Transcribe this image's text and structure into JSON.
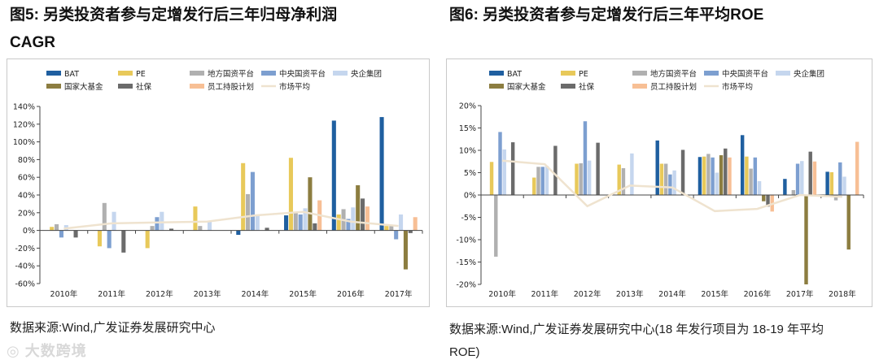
{
  "left": {
    "title_line1": "图5:  另类投资者参与定增发行后三年归母净利润",
    "title_line2": "CAGR",
    "source": "数据来源:Wind,广发证券发展研究中心"
  },
  "right": {
    "title": "图6:  另类投资者参与定增发行后三年平均ROE",
    "source": "数据来源:Wind,广发证券发展研究中心(18 年发行项目为 18-19 年平均 ROE)"
  },
  "watermark": "大数跨境",
  "colors": {
    "BAT": "#1f5fa0",
    "PE": "#e8c95a",
    "地方国资平台": "#b0b0b0",
    "中央国资平台": "#7d9fd0",
    "央企集团": "#c5d6ee",
    "国家大基金": "#8c7d40",
    "社保": "#6b6b6b",
    "员工持股计划": "#f7bf95",
    "市场平均": "#efe3cf"
  },
  "chart_data": [
    {
      "type": "bar",
      "title": "另类投资者参与定增发行后三年归母净利润CAGR",
      "categories": [
        "2010年",
        "2011年",
        "2012年",
        "2013年",
        "2014年",
        "2015年",
        "2016年",
        "2017年"
      ],
      "ylim": [
        -60,
        140
      ],
      "yticks": [
        -60,
        -40,
        -20,
        0,
        20,
        40,
        60,
        80,
        100,
        120,
        140
      ],
      "ytick_labels": [
        "-60%",
        "-40%",
        "-20%",
        "0%",
        "20%",
        "40%",
        "60%",
        "80%",
        "100%",
        "120%",
        "140%"
      ],
      "legend_rows": [
        [
          "BAT",
          "PE",
          "地方国资平台",
          "中央国资平台",
          "央企集团"
        ],
        [
          "国家大基金",
          "社保",
          "员工持股计划",
          "市场平均"
        ]
      ],
      "series": [
        {
          "name": "BAT",
          "values": [
            null,
            null,
            null,
            null,
            -5,
            17,
            124,
            128
          ]
        },
        {
          "name": "PE",
          "values": [
            4,
            -18,
            -20,
            27,
            76,
            82,
            18,
            5
          ]
        },
        {
          "name": "地方国资平台",
          "values": [
            7,
            31,
            5,
            5,
            41,
            20,
            24,
            5
          ]
        },
        {
          "name": "中央国资平台",
          "values": [
            -8,
            -20,
            15,
            null,
            66,
            18,
            13,
            -10
          ]
        },
        {
          "name": "央企集团",
          "values": [
            6,
            21,
            21,
            11,
            17,
            25,
            26,
            18
          ]
        },
        {
          "name": "国家大基金",
          "values": [
            null,
            null,
            null,
            null,
            null,
            60,
            51,
            -44
          ]
        },
        {
          "name": "社保",
          "values": [
            -8,
            -25,
            2,
            null,
            3,
            8,
            36,
            -3
          ]
        },
        {
          "name": "员工持股计划",
          "values": [
            null,
            null,
            null,
            null,
            null,
            34,
            27,
            15
          ]
        },
        {
          "name": "市场平均",
          "type": "line",
          "values": [
            2,
            8,
            9,
            10,
            17,
            21,
            10,
            5
          ]
        }
      ]
    },
    {
      "type": "bar",
      "title": "另类投资者参与定增发行后三年平均ROE",
      "categories": [
        "2010年",
        "2011年",
        "2012年",
        "2013年",
        "2014年",
        "2015年",
        "2016年",
        "2017年",
        "2018年"
      ],
      "ylim": [
        -20,
        20
      ],
      "yticks": [
        -20,
        -15,
        -10,
        -5,
        0,
        5,
        10,
        15,
        20
      ],
      "ytick_labels": [
        "-20%",
        "-15%",
        "-10%",
        "-5%",
        "0%",
        "5%",
        "10%",
        "15%",
        "20%"
      ],
      "legend_rows": [
        [
          "BAT",
          "PE",
          "地方国资平台",
          "中央国资平台",
          "央企集团"
        ],
        [
          "国家大基金",
          "社保",
          "员工持股计划",
          "市场平均"
        ]
      ],
      "series": [
        {
          "name": "BAT",
          "values": [
            null,
            null,
            null,
            null,
            12.2,
            8.5,
            13.4,
            3.6,
            5.2
          ]
        },
        {
          "name": "PE",
          "values": [
            7.4,
            3.9,
            7.0,
            6.8,
            7.0,
            8.6,
            8.6,
            null,
            5.1
          ]
        },
        {
          "name": "地方国资平台",
          "values": [
            -13.8,
            6.3,
            7.1,
            6.0,
            7.0,
            9.2,
            5.9,
            1.1,
            -1.2
          ]
        },
        {
          "name": "中央国资平台",
          "values": [
            14.1,
            6.3,
            16.5,
            null,
            4.6,
            8.4,
            8.4,
            7.0,
            7.3
          ]
        },
        {
          "name": "央企集团",
          "values": [
            10.2,
            6.5,
            7.7,
            9.3,
            5.5,
            5.0,
            3.1,
            7.6,
            4.1
          ]
        },
        {
          "name": "国家大基金",
          "values": [
            null,
            null,
            null,
            null,
            null,
            8.9,
            -1.4,
            -20.0,
            -12.2
          ]
        },
        {
          "name": "社保",
          "values": [
            11.8,
            11.0,
            11.7,
            null,
            10.1,
            10.4,
            -2.6,
            9.7,
            null
          ]
        },
        {
          "name": "员工持股计划",
          "values": [
            null,
            null,
            null,
            null,
            null,
            8.4,
            -3.7,
            7.5,
            11.9
          ]
        },
        {
          "name": "市场平均",
          "type": "line",
          "values": [
            7.7,
            6.9,
            -2.5,
            2.1,
            1.7,
            -3.6,
            -3.1,
            0.0,
            -0.4
          ]
        }
      ]
    }
  ]
}
